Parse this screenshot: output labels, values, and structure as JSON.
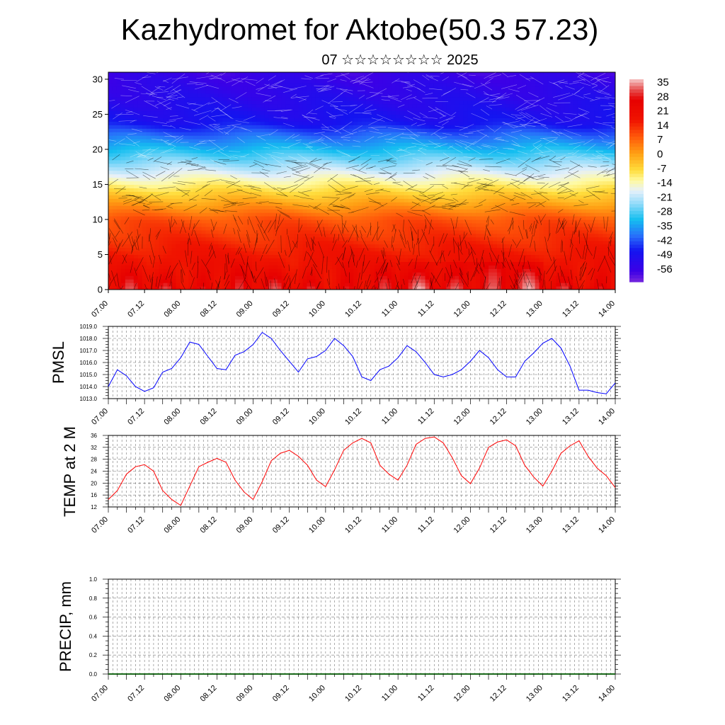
{
  "title": "Kazhydromet for Aktobe(50.3 57.23)",
  "subtitle": "07 ☆☆☆☆☆☆☆☆ 2025",
  "time_labels": [
    "07.00",
    "07.12",
    "08.00",
    "08.12",
    "09.00",
    "09.12",
    "10.00",
    "10.12",
    "11.00",
    "11.12",
    "12.00",
    "12.12",
    "13.00",
    "13.12",
    "14.00"
  ],
  "chart_data": [
    {
      "type": "heatmap",
      "description_key": "temperature-wind-cross-section",
      "y_ticks": [
        "0",
        "5",
        "10",
        "15",
        "20",
        "25",
        "30"
      ],
      "ylim": [
        0,
        31
      ],
      "colorbar": {
        "labels": [
          "35",
          "28",
          "21",
          "14",
          "7",
          "0",
          "-7",
          "-14",
          "-21",
          "-28",
          "-35",
          "-42",
          "-49",
          "-56"
        ],
        "range": [
          -60,
          38
        ]
      },
      "grid": false
    },
    {
      "type": "line",
      "ylabel": "PMSL",
      "ylim": [
        1013.0,
        1019.0
      ],
      "y_ticks": [
        "1019.0",
        "1018.0",
        "1017.0",
        "1016.0",
        "1015.0",
        "1014.0",
        "1013.0"
      ],
      "color": "#0000ff",
      "x_start": 0,
      "x_step": 0.25,
      "values": [
        1014.0,
        1015.4,
        1014.9,
        1014.0,
        1013.6,
        1013.9,
        1015.2,
        1015.5,
        1016.4,
        1017.7,
        1017.5,
        1016.5,
        1015.5,
        1015.4,
        1016.6,
        1016.9,
        1017.5,
        1018.5,
        1018.0,
        1017.0,
        1016.1,
        1015.2,
        1016.3,
        1016.5,
        1017.0,
        1018.0,
        1017.4,
        1016.5,
        1014.8,
        1014.5,
        1015.4,
        1015.7,
        1016.4,
        1017.4,
        1016.9,
        1016.0,
        1015.0,
        1014.8,
        1015.0,
        1015.4,
        1016.1,
        1017.0,
        1016.4,
        1015.4,
        1014.8,
        1014.8,
        1016.1,
        1016.8,
        1017.6,
        1018.0,
        1017.2,
        1015.7,
        1013.7,
        1013.7,
        1013.5,
        1013.4,
        1014.3
      ],
      "grid": true
    },
    {
      "type": "line",
      "ylabel": "TEMP at 2 M",
      "ylim": [
        12,
        36
      ],
      "y_ticks": [
        "36",
        "32",
        "28",
        "24",
        "20",
        "16",
        "12"
      ],
      "color": "#ff0000",
      "x_start": 0,
      "x_step": 0.25,
      "values": [
        14.5,
        17.5,
        23.0,
        25.5,
        26.2,
        24.0,
        17.5,
        14.5,
        12.5,
        19.0,
        25.5,
        27.0,
        28.3,
        27.0,
        21.0,
        17.0,
        14.5,
        20.5,
        27.5,
        30.0,
        31.0,
        29.0,
        26.0,
        21.0,
        18.8,
        24.5,
        31.0,
        33.5,
        35.0,
        33.5,
        26.0,
        23.0,
        21.0,
        26.0,
        33.0,
        35.0,
        35.5,
        33.5,
        28.5,
        22.5,
        19.8,
        25.0,
        32.0,
        33.8,
        34.5,
        32.5,
        26.0,
        22.0,
        19.0,
        24.0,
        30.0,
        32.5,
        34.2,
        29.0,
        25.0,
        22.5,
        18.5
      ],
      "grid": true
    },
    {
      "type": "bar",
      "ylabel": "PRECIP, mm",
      "ylim": [
        0.0,
        1.0
      ],
      "y_ticks": [
        "1.0",
        "0.8",
        "0.6",
        "0.4",
        "0.2",
        "0.0"
      ],
      "values": [],
      "grid": true
    }
  ]
}
